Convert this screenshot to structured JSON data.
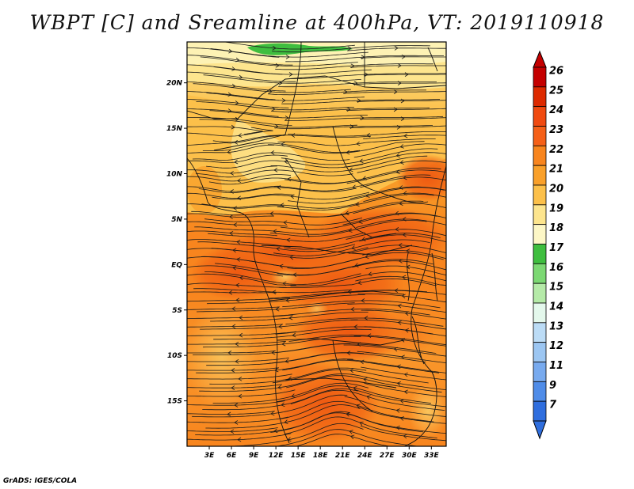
{
  "title": "WBPT [C] and Sreamline at 400hPa, VT: 2019110918",
  "credit": "GrADS: IGES/COLA",
  "map": {
    "lat_labels": [
      "20N",
      "15N",
      "10N",
      "5N",
      "EQ",
      "5S",
      "10S",
      "15S"
    ],
    "lon_labels": [
      "3E",
      "6E",
      "9E",
      "12E",
      "15E",
      "18E",
      "21E",
      "24E",
      "27E",
      "30E",
      "33E"
    ],
    "lat_range": [
      -20,
      24.5
    ],
    "lon_range": [
      0,
      35
    ]
  },
  "colorbar": {
    "levels": [
      "26",
      "25",
      "24",
      "23",
      "22",
      "21",
      "20",
      "19",
      "18",
      "17",
      "16",
      "15",
      "14",
      "13",
      "12",
      "11",
      "9",
      "7"
    ],
    "colors": [
      "#c40000",
      "#dd2a00",
      "#f04a10",
      "#f56018",
      "#f8851e",
      "#f9a02a",
      "#fcc04a",
      "#fde58e",
      "#fdf7c6",
      "#3fbe3f",
      "#7cd873",
      "#b5eaa8",
      "#e4f8ec",
      "#bcdcf6",
      "#9cc6f2",
      "#78aaee",
      "#4f8ce8",
      "#2f6ede"
    ]
  },
  "colors": {
    "frame": "#000000",
    "streamline": "#1a1a1a"
  }
}
